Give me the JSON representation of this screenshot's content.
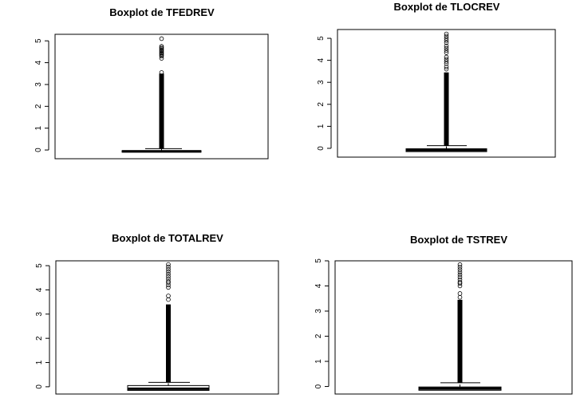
{
  "chart_data": [
    {
      "type": "boxplot",
      "title": "Boxplot de TFEDREV",
      "ylim": [
        -0.4,
        5.3
      ],
      "yticks": [
        "0",
        "1",
        "2",
        "3",
        "4",
        "5"
      ],
      "box": {
        "min": -0.1,
        "q1": -0.1,
        "median": -0.06,
        "q3": -0.03,
        "whisker_high": 0.06
      },
      "dense_outlier_range": [
        0.06,
        3.5
      ],
      "outliers": [
        3.55,
        4.2,
        4.3,
        4.35,
        4.4,
        4.45,
        4.5,
        4.55,
        4.6,
        4.65,
        4.7,
        4.75,
        5.1
      ]
    },
    {
      "type": "boxplot",
      "title": "Boxplot de TLOCREV",
      "ylim": [
        -0.4,
        5.4
      ],
      "yticks": [
        "0",
        "1",
        "2",
        "3",
        "4",
        "5"
      ],
      "box": {
        "min": -0.15,
        "q1": -0.15,
        "median": -0.08,
        "q3": -0.02,
        "whisker_high": 0.12
      },
      "dense_outlier_range": [
        0.12,
        3.45
      ],
      "outliers": [
        3.6,
        3.7,
        3.85,
        3.95,
        4.05,
        4.15,
        4.35,
        4.45,
        4.55,
        4.65,
        4.8,
        4.9,
        5.0,
        5.1,
        5.2
      ]
    },
    {
      "type": "boxplot",
      "title": "Boxplot de TOTALREV",
      "ylim": [
        -0.3,
        5.2
      ],
      "yticks": [
        "0",
        "1",
        "2",
        "3",
        "4",
        "5"
      ],
      "box": {
        "min": -0.15,
        "q1": -0.15,
        "median": -0.08,
        "q3": 0.05,
        "whisker_high": 0.18
      },
      "dense_outlier_range": [
        0.18,
        3.4
      ],
      "outliers": [
        3.6,
        3.75,
        4.1,
        4.2,
        4.3,
        4.35,
        4.45,
        4.55,
        4.65,
        4.75,
        4.85,
        4.95,
        5.05
      ]
    },
    {
      "type": "boxplot",
      "title": "Boxplot de TSTREV",
      "ylim": [
        -0.3,
        5.0
      ],
      "yticks": [
        "0",
        "1",
        "2",
        "3",
        "4",
        "5"
      ],
      "box": {
        "min": -0.15,
        "q1": -0.15,
        "median": -0.08,
        "q3": -0.02,
        "whisker_high": 0.15
      },
      "dense_outlier_range": [
        0.15,
        3.45
      ],
      "outliers": [
        3.55,
        3.7,
        4.0,
        4.1,
        4.15,
        4.25,
        4.35,
        4.45,
        4.55,
        4.65,
        4.75,
        4.85
      ]
    }
  ]
}
